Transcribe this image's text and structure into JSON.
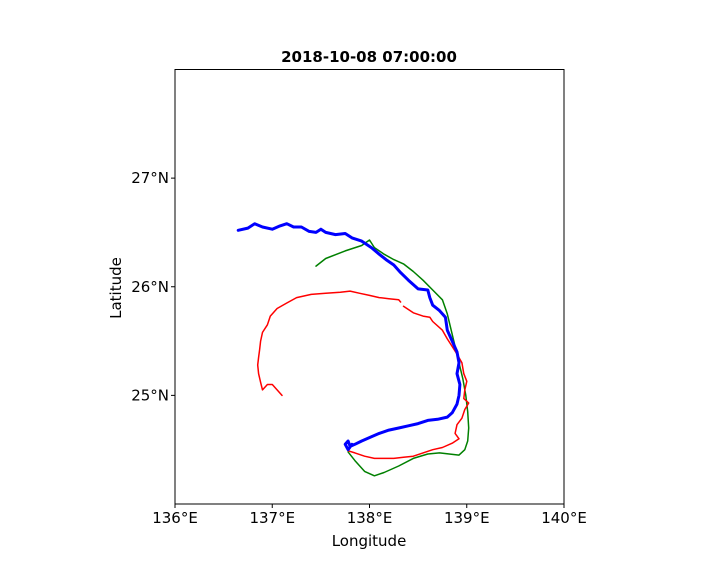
{
  "chart_data": {
    "type": "line",
    "title": "2018-10-08 07:00:00",
    "xlabel": "Longitude",
    "ylabel": "Latitude",
    "xlim": [
      136.0,
      140.0
    ],
    "ylim": [
      24.0,
      28.0
    ],
    "x_ticks": [
      136,
      137,
      138,
      139,
      140
    ],
    "x_tick_labels": [
      "136°E",
      "137°E",
      "138°E",
      "139°E",
      "140°E"
    ],
    "y_ticks": [
      25,
      26,
      27
    ],
    "y_tick_labels": [
      "25°N",
      "26°N",
      "27°N"
    ],
    "grid": false,
    "legend": "none",
    "series": [
      {
        "color": "#008000",
        "width": 1.5,
        "points": [
          [
            137.45,
            26.19
          ],
          [
            137.55,
            26.26
          ],
          [
            137.75,
            26.33
          ],
          [
            137.92,
            26.38
          ],
          [
            138.0,
            26.43
          ],
          [
            138.05,
            26.36
          ],
          [
            138.15,
            26.3
          ],
          [
            138.25,
            26.25
          ],
          [
            138.35,
            26.21
          ],
          [
            138.45,
            26.14
          ],
          [
            138.55,
            26.06
          ],
          [
            138.65,
            25.97
          ],
          [
            138.75,
            25.88
          ],
          [
            138.8,
            25.75
          ],
          [
            138.84,
            25.6
          ],
          [
            138.88,
            25.45
          ],
          [
            138.92,
            25.3
          ],
          [
            138.96,
            25.15
          ],
          [
            138.99,
            25.0
          ],
          [
            139.01,
            24.85
          ],
          [
            139.02,
            24.7
          ],
          [
            139.01,
            24.58
          ],
          [
            138.98,
            24.5
          ],
          [
            138.92,
            24.45
          ],
          [
            138.82,
            24.46
          ],
          [
            138.72,
            24.47
          ],
          [
            138.6,
            24.46
          ],
          [
            138.45,
            24.42
          ],
          [
            138.3,
            24.35
          ],
          [
            138.15,
            24.29
          ],
          [
            138.05,
            24.26
          ],
          [
            137.95,
            24.3
          ],
          [
            137.85,
            24.4
          ],
          [
            137.78,
            24.48
          ]
        ]
      },
      {
        "color": "#ff0000",
        "width": 1.5,
        "points": [
          [
            138.32,
            25.86
          ],
          [
            138.3,
            25.88
          ],
          [
            138.2,
            25.89
          ],
          [
            138.1,
            25.9
          ],
          [
            138.0,
            25.92
          ],
          [
            137.9,
            25.94
          ],
          [
            137.8,
            25.96
          ],
          [
            137.7,
            25.95
          ],
          [
            137.55,
            25.94
          ],
          [
            137.4,
            25.93
          ],
          [
            137.25,
            25.9
          ],
          [
            137.15,
            25.85
          ],
          [
            137.05,
            25.8
          ],
          [
            136.98,
            25.73
          ],
          [
            136.95,
            25.65
          ],
          [
            136.9,
            25.58
          ],
          [
            136.88,
            25.5
          ],
          [
            136.87,
            25.42
          ],
          [
            136.86,
            25.35
          ],
          [
            136.85,
            25.28
          ],
          [
            136.86,
            25.2
          ],
          [
            136.88,
            25.12
          ],
          [
            136.9,
            25.05
          ],
          [
            136.95,
            25.1
          ],
          [
            137.0,
            25.1
          ],
          [
            137.05,
            25.05
          ],
          [
            137.1,
            25.0
          ]
        ]
      },
      {
        "color": "#ff0000",
        "width": 1.5,
        "points": [
          [
            138.35,
            25.82
          ],
          [
            138.45,
            25.76
          ],
          [
            138.55,
            25.73
          ],
          [
            138.62,
            25.72
          ],
          [
            138.65,
            25.68
          ],
          [
            138.75,
            25.6
          ],
          [
            138.8,
            25.52
          ],
          [
            138.85,
            25.45
          ],
          [
            138.9,
            25.38
          ],
          [
            138.95,
            25.3
          ],
          [
            138.97,
            25.2
          ],
          [
            139.0,
            25.13
          ],
          [
            138.98,
            25.05
          ],
          [
            138.97,
            24.97
          ],
          [
            139.02,
            24.93
          ],
          [
            138.98,
            24.87
          ],
          [
            138.95,
            24.79
          ],
          [
            138.9,
            24.73
          ],
          [
            138.88,
            24.65
          ],
          [
            138.92,
            24.6
          ],
          [
            138.85,
            24.56
          ],
          [
            138.75,
            24.52
          ],
          [
            138.65,
            24.5
          ],
          [
            138.55,
            24.47
          ],
          [
            138.45,
            24.44
          ],
          [
            138.35,
            24.43
          ],
          [
            138.25,
            24.42
          ],
          [
            138.15,
            24.42
          ],
          [
            138.05,
            24.42
          ],
          [
            137.95,
            24.44
          ],
          [
            137.85,
            24.47
          ],
          [
            137.78,
            24.49
          ]
        ]
      },
      {
        "color": "#0000ff",
        "width": 3,
        "points": [
          [
            136.65,
            26.52
          ],
          [
            136.75,
            26.54
          ],
          [
            136.82,
            26.58
          ],
          [
            136.9,
            26.55
          ],
          [
            137.0,
            26.53
          ],
          [
            137.08,
            26.56
          ],
          [
            137.15,
            26.58
          ],
          [
            137.22,
            26.55
          ],
          [
            137.3,
            26.55
          ],
          [
            137.38,
            26.51
          ],
          [
            137.45,
            26.5
          ],
          [
            137.5,
            26.53
          ],
          [
            137.55,
            26.5
          ],
          [
            137.65,
            26.48
          ],
          [
            137.75,
            26.49
          ],
          [
            137.82,
            26.45
          ],
          [
            137.92,
            26.42
          ],
          [
            138.02,
            26.36
          ],
          [
            138.1,
            26.3
          ],
          [
            138.17,
            26.25
          ],
          [
            138.25,
            26.2
          ],
          [
            138.32,
            26.13
          ],
          [
            138.4,
            26.06
          ],
          [
            138.5,
            25.98
          ],
          [
            138.6,
            25.97
          ],
          [
            138.62,
            25.9
          ],
          [
            138.65,
            25.83
          ],
          [
            138.72,
            25.78
          ],
          [
            138.78,
            25.72
          ],
          [
            138.8,
            25.6
          ],
          [
            138.85,
            25.5
          ],
          [
            138.9,
            25.4
          ],
          [
            138.92,
            25.3
          ],
          [
            138.9,
            25.2
          ],
          [
            138.93,
            25.1
          ],
          [
            138.92,
            25.0
          ],
          [
            138.9,
            24.92
          ],
          [
            138.85,
            24.84
          ],
          [
            138.8,
            24.8
          ],
          [
            138.7,
            24.78
          ],
          [
            138.6,
            24.77
          ],
          [
            138.5,
            24.74
          ],
          [
            138.4,
            24.72
          ],
          [
            138.3,
            24.7
          ],
          [
            138.2,
            24.68
          ],
          [
            138.1,
            24.65
          ],
          [
            138.02,
            24.62
          ],
          [
            137.92,
            24.58
          ],
          [
            137.85,
            24.55
          ],
          [
            137.8,
            24.53
          ],
          [
            137.78,
            24.58
          ],
          [
            137.75,
            24.55
          ],
          [
            137.78,
            24.5
          ],
          [
            137.82,
            24.55
          ]
        ]
      }
    ]
  }
}
